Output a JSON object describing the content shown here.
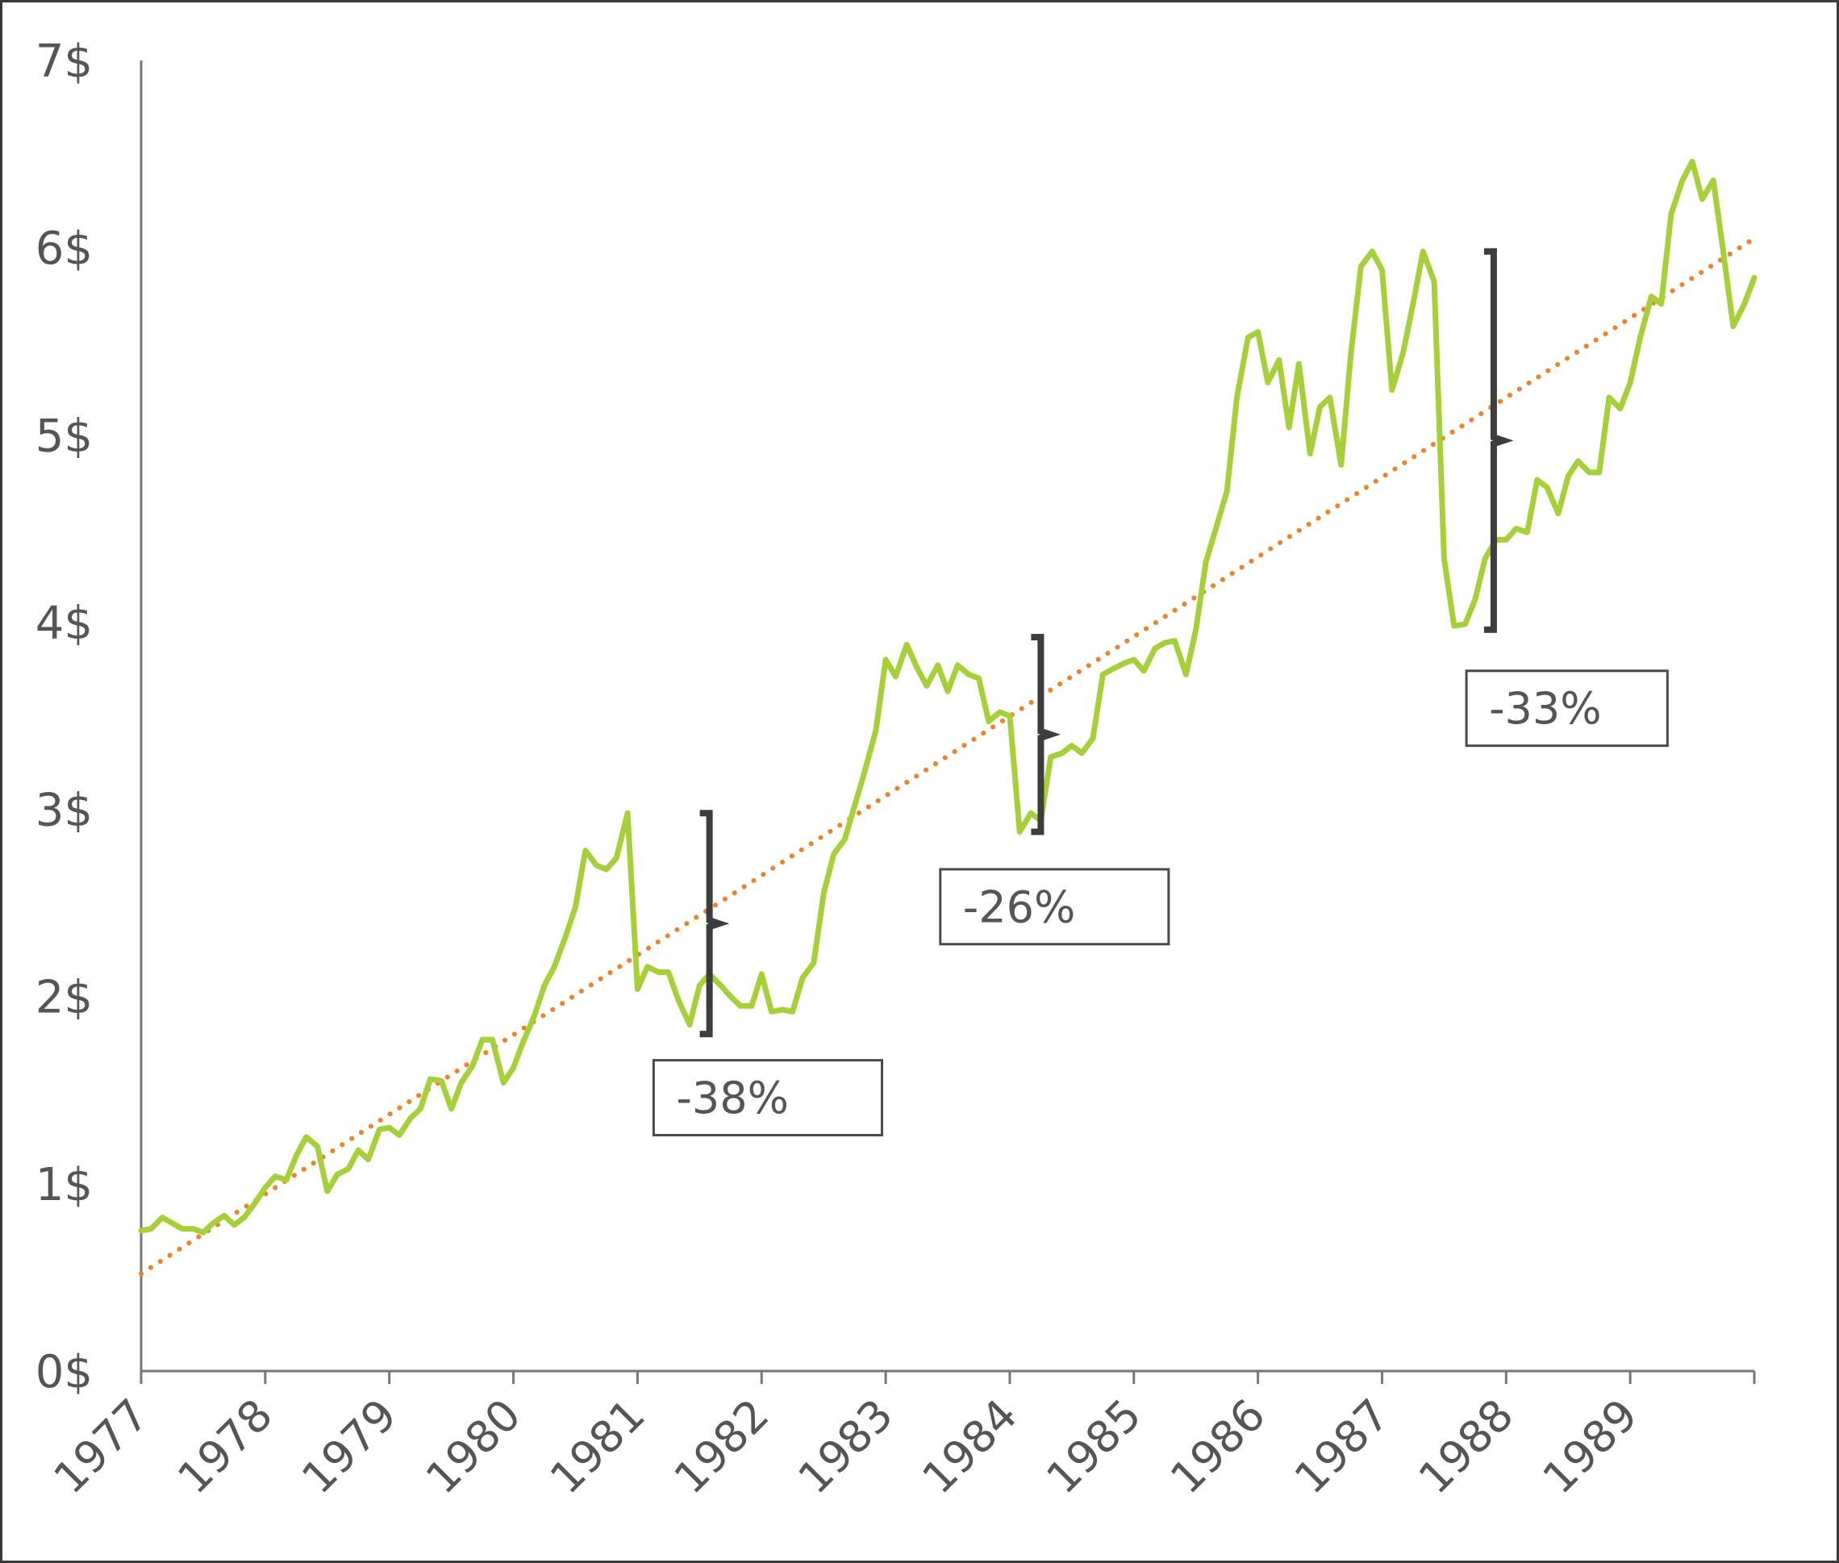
{
  "chart_data": {
    "type": "line",
    "title": "",
    "xlabel": "",
    "ylabel": "",
    "xlim": [
      1977,
      1990
    ],
    "ylim": [
      0,
      7
    ],
    "y_ticks": [
      0,
      1,
      2,
      3,
      4,
      5,
      6,
      7
    ],
    "y_tick_labels": [
      "0$",
      "1$",
      "2$",
      "3$",
      "4$",
      "5$",
      "6$",
      "7$"
    ],
    "x_tick_labels": [
      "1977",
      "1978",
      "1979",
      "1980",
      "1981",
      "1982",
      "1983",
      "1984",
      "1985",
      "1986",
      "1987",
      "1988",
      "1989"
    ],
    "grid": false,
    "legend": "none",
    "series": [
      {
        "kind": "price",
        "color": "#a6cf3a",
        "style": "solid",
        "points": [
          [
            1977.0,
            0.75
          ],
          [
            1977.08,
            0.76
          ],
          [
            1977.17,
            0.82
          ],
          [
            1977.25,
            0.79
          ],
          [
            1977.33,
            0.76
          ],
          [
            1977.42,
            0.76
          ],
          [
            1977.5,
            0.74
          ],
          [
            1977.58,
            0.79
          ],
          [
            1977.67,
            0.83
          ],
          [
            1977.75,
            0.78
          ],
          [
            1977.83,
            0.82
          ],
          [
            1977.92,
            0.9
          ],
          [
            1978.0,
            0.98
          ],
          [
            1978.08,
            1.04
          ],
          [
            1978.17,
            1.02
          ],
          [
            1978.25,
            1.15
          ],
          [
            1978.33,
            1.25
          ],
          [
            1978.42,
            1.2
          ],
          [
            1978.5,
            0.96
          ],
          [
            1978.58,
            1.05
          ],
          [
            1978.67,
            1.08
          ],
          [
            1978.75,
            1.18
          ],
          [
            1978.83,
            1.13
          ],
          [
            1978.92,
            1.29
          ],
          [
            1979.0,
            1.3
          ],
          [
            1979.08,
            1.26
          ],
          [
            1979.17,
            1.35
          ],
          [
            1979.25,
            1.4
          ],
          [
            1979.33,
            1.56
          ],
          [
            1979.42,
            1.55
          ],
          [
            1979.5,
            1.4
          ],
          [
            1979.58,
            1.54
          ],
          [
            1979.67,
            1.63
          ],
          [
            1979.75,
            1.77
          ],
          [
            1979.83,
            1.77
          ],
          [
            1979.92,
            1.54
          ],
          [
            1980.0,
            1.62
          ],
          [
            1980.08,
            1.76
          ],
          [
            1980.17,
            1.9
          ],
          [
            1980.25,
            2.06
          ],
          [
            1980.33,
            2.16
          ],
          [
            1980.42,
            2.32
          ],
          [
            1980.5,
            2.48
          ],
          [
            1980.58,
            2.78
          ],
          [
            1980.67,
            2.7
          ],
          [
            1980.75,
            2.68
          ],
          [
            1980.83,
            2.74
          ],
          [
            1980.92,
            2.98
          ],
          [
            1981.0,
            2.04
          ],
          [
            1981.08,
            2.16
          ],
          [
            1981.17,
            2.13
          ],
          [
            1981.25,
            2.13
          ],
          [
            1981.33,
            1.98
          ],
          [
            1981.42,
            1.85
          ],
          [
            1981.5,
            2.06
          ],
          [
            1981.58,
            2.12
          ],
          [
            1981.67,
            2.06
          ],
          [
            1981.75,
            2.0
          ],
          [
            1981.83,
            1.95
          ],
          [
            1981.92,
            1.95
          ],
          [
            1982.0,
            2.12
          ],
          [
            1982.08,
            1.92
          ],
          [
            1982.17,
            1.93
          ],
          [
            1982.25,
            1.92
          ],
          [
            1982.33,
            2.1
          ],
          [
            1982.42,
            2.18
          ],
          [
            1982.5,
            2.55
          ],
          [
            1982.58,
            2.76
          ],
          [
            1982.67,
            2.84
          ],
          [
            1982.75,
            3.02
          ],
          [
            1982.83,
            3.2
          ],
          [
            1982.92,
            3.42
          ],
          [
            1983.0,
            3.8
          ],
          [
            1983.08,
            3.71
          ],
          [
            1983.17,
            3.88
          ],
          [
            1983.25,
            3.76
          ],
          [
            1983.33,
            3.66
          ],
          [
            1983.42,
            3.77
          ],
          [
            1983.5,
            3.63
          ],
          [
            1983.58,
            3.77
          ],
          [
            1983.67,
            3.72
          ],
          [
            1983.75,
            3.7
          ],
          [
            1983.83,
            3.47
          ],
          [
            1983.92,
            3.52
          ],
          [
            1984.0,
            3.5
          ],
          [
            1984.08,
            2.88
          ],
          [
            1984.17,
            2.98
          ],
          [
            1984.25,
            2.94
          ],
          [
            1984.33,
            3.28
          ],
          [
            1984.42,
            3.3
          ],
          [
            1984.5,
            3.34
          ],
          [
            1984.58,
            3.3
          ],
          [
            1984.67,
            3.38
          ],
          [
            1984.75,
            3.72
          ],
          [
            1984.83,
            3.75
          ],
          [
            1984.92,
            3.78
          ],
          [
            1985.0,
            3.8
          ],
          [
            1985.08,
            3.74
          ],
          [
            1985.17,
            3.86
          ],
          [
            1985.25,
            3.89
          ],
          [
            1985.33,
            3.9
          ],
          [
            1985.42,
            3.72
          ],
          [
            1985.5,
            3.96
          ],
          [
            1985.58,
            4.32
          ],
          [
            1985.67,
            4.52
          ],
          [
            1985.75,
            4.7
          ],
          [
            1985.83,
            5.2
          ],
          [
            1985.92,
            5.52
          ],
          [
            1986.0,
            5.55
          ],
          [
            1986.08,
            5.28
          ],
          [
            1986.17,
            5.4
          ],
          [
            1986.25,
            5.04
          ],
          [
            1986.33,
            5.38
          ],
          [
            1986.42,
            4.9
          ],
          [
            1986.5,
            5.15
          ],
          [
            1986.58,
            5.2
          ],
          [
            1986.67,
            4.84
          ],
          [
            1986.75,
            5.44
          ],
          [
            1986.83,
            5.9
          ],
          [
            1986.92,
            5.98
          ],
          [
            1987.0,
            5.88
          ],
          [
            1987.08,
            5.24
          ],
          [
            1987.17,
            5.44
          ],
          [
            1987.25,
            5.7
          ],
          [
            1987.33,
            5.98
          ],
          [
            1987.42,
            5.82
          ],
          [
            1987.5,
            4.34
          ],
          [
            1987.58,
            3.98
          ],
          [
            1987.67,
            3.99
          ],
          [
            1987.75,
            4.12
          ],
          [
            1987.83,
            4.34
          ],
          [
            1987.92,
            4.44
          ],
          [
            1988.0,
            4.44
          ],
          [
            1988.08,
            4.5
          ],
          [
            1988.17,
            4.48
          ],
          [
            1988.25,
            4.76
          ],
          [
            1988.33,
            4.72
          ],
          [
            1988.42,
            4.58
          ],
          [
            1988.5,
            4.78
          ],
          [
            1988.58,
            4.86
          ],
          [
            1988.67,
            4.8
          ],
          [
            1988.75,
            4.8
          ],
          [
            1988.83,
            5.2
          ],
          [
            1988.92,
            5.14
          ],
          [
            1989.0,
            5.28
          ],
          [
            1989.08,
            5.52
          ],
          [
            1989.17,
            5.74
          ],
          [
            1989.25,
            5.7
          ],
          [
            1989.33,
            6.18
          ],
          [
            1989.42,
            6.36
          ],
          [
            1989.5,
            6.46
          ],
          [
            1989.58,
            6.26
          ],
          [
            1989.67,
            6.36
          ],
          [
            1989.75,
            5.98
          ],
          [
            1989.83,
            5.58
          ],
          [
            1989.92,
            5.7
          ],
          [
            1990.0,
            5.84
          ]
        ]
      },
      {
        "kind": "trend",
        "color": "#f08128",
        "style": "dotted",
        "points": [
          [
            1977.0,
            0.52
          ],
          [
            1990.0,
            6.05
          ]
        ]
      }
    ],
    "annotations": [
      {
        "label": "-38%",
        "bracket_x": 1981.58,
        "y_top": 2.98,
        "y_bottom": 1.8,
        "box_x": [
          1981.13,
          1982.97
        ],
        "box_y": [
          1.26,
          1.66
        ]
      },
      {
        "label": "-26%",
        "bracket_x": 1984.25,
        "y_top": 3.92,
        "y_bottom": 2.88,
        "box_x": [
          1983.44,
          1985.28
        ],
        "box_y": [
          2.28,
          2.68
        ]
      },
      {
        "label": "-33%",
        "bracket_x": 1987.9,
        "y_top": 5.98,
        "y_bottom": 3.96,
        "box_x": [
          1987.68,
          1989.3
        ],
        "box_y": [
          3.34,
          3.74
        ]
      }
    ]
  }
}
